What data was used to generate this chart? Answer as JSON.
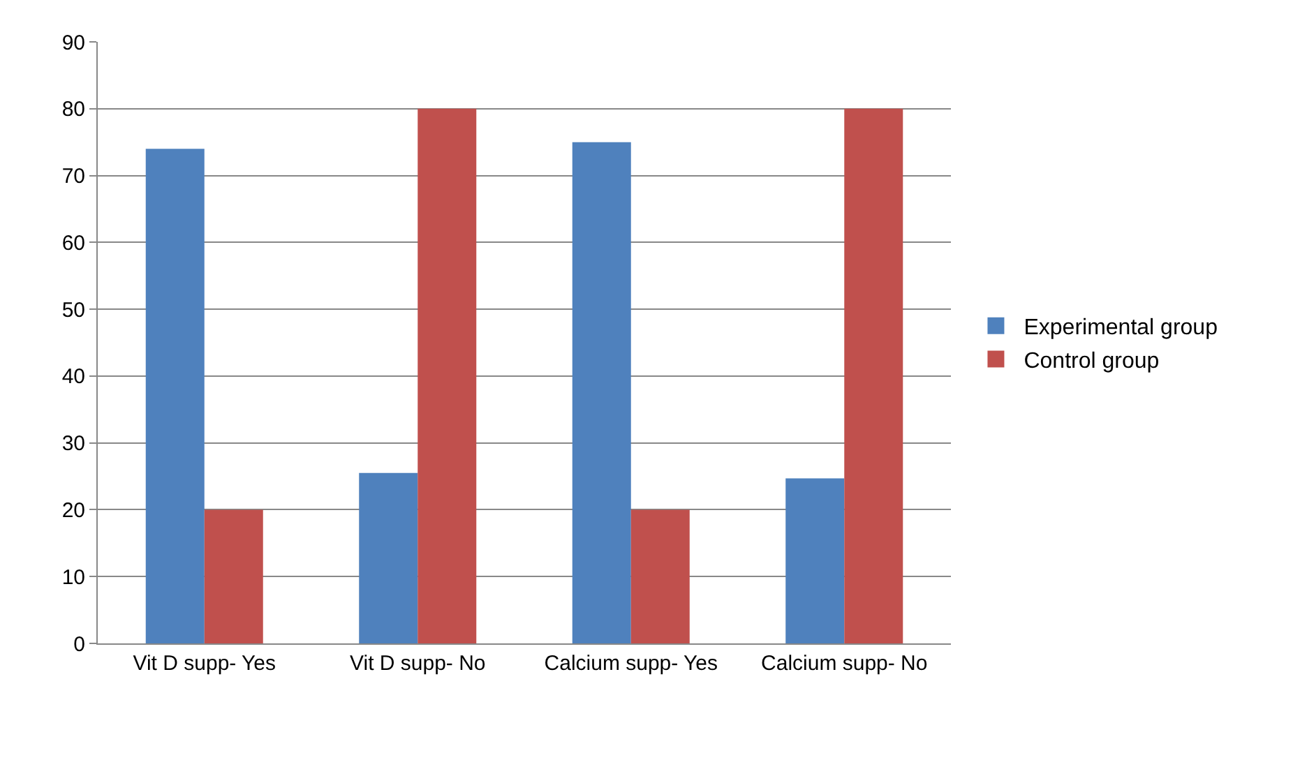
{
  "chart_data": {
    "type": "bar",
    "categories": [
      "Vit D supp- Yes",
      "Vit D supp- No",
      "Calcium supp- Yes",
      "Calcium supp- No"
    ],
    "series": [
      {
        "name": "Experimental group",
        "color": "#4f81bd",
        "values": [
          74,
          25.5,
          75,
          24.7
        ]
      },
      {
        "name": "Control group",
        "color": "#c0504d",
        "values": [
          20,
          80,
          20,
          80
        ]
      }
    ],
    "ylim": [
      0,
      90
    ],
    "yticks": [
      0,
      10,
      20,
      30,
      40,
      50,
      60,
      70,
      80,
      90
    ],
    "grid": "y",
    "legend": "right"
  }
}
